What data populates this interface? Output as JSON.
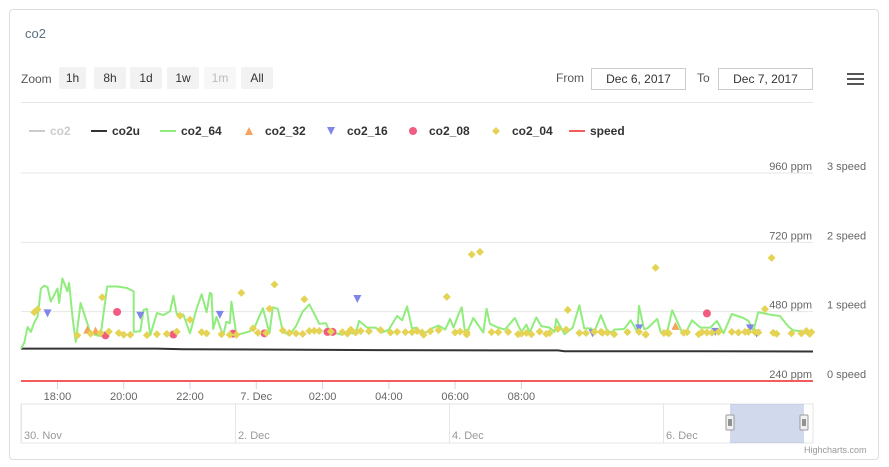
{
  "title": "co2",
  "zoom": {
    "label": "Zoom",
    "buttons": [
      {
        "label": "1h",
        "enabled": true
      },
      {
        "label": "8h",
        "enabled": true
      },
      {
        "label": "1d",
        "enabled": true
      },
      {
        "label": "1w",
        "enabled": true
      },
      {
        "label": "1m",
        "enabled": false
      },
      {
        "label": "All",
        "enabled": true
      }
    ]
  },
  "range": {
    "from_label": "From",
    "from_value": "Dec 6, 2017",
    "to_label": "To",
    "to_value": "Dec 7, 2017"
  },
  "credit": "Highcharts.com",
  "chart_data": {
    "type": "line",
    "x_ticks": [
      "18:00",
      "20:00",
      "22:00",
      "7. Dec",
      "02:00",
      "04:00",
      "06:00",
      "08:00"
    ],
    "y_left_ticks": [
      "240 ppm",
      "480 ppm",
      "720 ppm",
      "960 ppm"
    ],
    "y_left_range": [
      240,
      960
    ],
    "y_right_ticks": [
      "0 speed",
      "1 speed",
      "2 speed",
      "3 speed"
    ],
    "y_right_range": [
      0,
      3
    ],
    "grid": true,
    "legend_position": "top",
    "series": [
      {
        "name": "co2",
        "color": "#cccccc",
        "visible": false,
        "values": []
      },
      {
        "name": "co2u",
        "color": "#333333",
        "marker": "none",
        "values": [
          [
            16.9,
            352
          ],
          [
            21.0,
            352
          ],
          [
            21.8,
            350
          ],
          [
            27.7,
            347
          ],
          [
            31.3,
            346
          ],
          [
            33.1,
            346
          ],
          [
            33.3,
            343
          ],
          [
            37.4,
            343
          ],
          [
            40.8,
            342
          ]
        ]
      },
      {
        "name": "co2_64",
        "color": "#90ed7d",
        "marker": "none",
        "values": [
          [
            16.9,
            352
          ],
          [
            17.0,
            373
          ],
          [
            17.1,
            427
          ],
          [
            17.2,
            410
          ],
          [
            17.3,
            443
          ],
          [
            17.4,
            463
          ],
          [
            17.5,
            560
          ],
          [
            17.6,
            570
          ],
          [
            17.7,
            565
          ],
          [
            17.8,
            515
          ],
          [
            18.0,
            560
          ],
          [
            18.05,
            510
          ],
          [
            18.15,
            595
          ],
          [
            18.3,
            550
          ],
          [
            18.35,
            580
          ],
          [
            18.45,
            465
          ],
          [
            18.55,
            375
          ],
          [
            18.7,
            510
          ],
          [
            19.0,
            405
          ],
          [
            19.2,
            398
          ],
          [
            19.3,
            395
          ],
          [
            19.5,
            567
          ],
          [
            19.8,
            567
          ],
          [
            20.1,
            562
          ],
          [
            20.3,
            550
          ],
          [
            20.3,
            410
          ],
          [
            20.5,
            412
          ],
          [
            20.6,
            486
          ],
          [
            20.7,
            490
          ],
          [
            20.8,
            398
          ],
          [
            21.0,
            475
          ],
          [
            21.2,
            468
          ],
          [
            21.4,
            482
          ],
          [
            21.5,
            535
          ],
          [
            21.6,
            472
          ],
          [
            21.8,
            470
          ],
          [
            22.0,
            405
          ],
          [
            22.2,
            490
          ],
          [
            22.35,
            540
          ],
          [
            22.5,
            478
          ],
          [
            22.6,
            545
          ],
          [
            22.65,
            542
          ],
          [
            22.7,
            420
          ],
          [
            22.8,
            462
          ],
          [
            23.0,
            398
          ],
          [
            23.1,
            445
          ],
          [
            23.2,
            440
          ],
          [
            23.25,
            515
          ],
          [
            23.4,
            400
          ],
          [
            23.6,
            405
          ],
          [
            23.8,
            412
          ],
          [
            23.95,
            426
          ],
          [
            24.2,
            492
          ],
          [
            24.4,
            405
          ],
          [
            24.5,
            495
          ],
          [
            24.65,
            490
          ],
          [
            24.8,
            412
          ],
          [
            25.0,
            398
          ],
          [
            25.2,
            430
          ],
          [
            25.4,
            480
          ],
          [
            25.6,
            505
          ],
          [
            25.8,
            462
          ],
          [
            25.9,
            438
          ],
          [
            26.1,
            440
          ],
          [
            26.25,
            402
          ],
          [
            26.4,
            405
          ],
          [
            26.6,
            400
          ],
          [
            26.75,
            410
          ],
          [
            27.0,
            402
          ],
          [
            27.1,
            448
          ],
          [
            27.35,
            425
          ],
          [
            27.6,
            425
          ],
          [
            27.8,
            408
          ],
          [
            28.0,
            418
          ],
          [
            28.25,
            465
          ],
          [
            28.4,
            450
          ],
          [
            28.55,
            498
          ],
          [
            28.7,
            422
          ],
          [
            28.85,
            425
          ],
          [
            29.0,
            400
          ],
          [
            29.3,
            422
          ],
          [
            29.5,
            432
          ],
          [
            29.7,
            418
          ],
          [
            29.85,
            455
          ],
          [
            29.95,
            425
          ],
          [
            30.1,
            470
          ],
          [
            30.2,
            495
          ],
          [
            30.3,
            407
          ],
          [
            30.35,
            405
          ],
          [
            30.55,
            458
          ],
          [
            30.85,
            408
          ],
          [
            30.95,
            490
          ],
          [
            31.05,
            438
          ],
          [
            31.3,
            425
          ],
          [
            31.5,
            418
          ],
          [
            31.8,
            458
          ],
          [
            32.0,
            410
          ],
          [
            32.15,
            435
          ],
          [
            32.25,
            408
          ],
          [
            32.45,
            460
          ],
          [
            32.6,
            430
          ],
          [
            32.85,
            425
          ],
          [
            33.0,
            410
          ],
          [
            33.05,
            455
          ],
          [
            33.3,
            402
          ],
          [
            33.55,
            425
          ],
          [
            33.75,
            502
          ],
          [
            33.9,
            422
          ],
          [
            34.1,
            422
          ],
          [
            34.2,
            410
          ],
          [
            34.4,
            468
          ],
          [
            34.6,
            410
          ],
          [
            34.75,
            410
          ],
          [
            34.8,
            418
          ],
          [
            35.1,
            420
          ],
          [
            35.3,
            450
          ],
          [
            35.5,
            410
          ],
          [
            35.55,
            500
          ],
          [
            35.7,
            420
          ],
          [
            35.8,
            422
          ],
          [
            36.1,
            455
          ],
          [
            36.2,
            410
          ],
          [
            36.4,
            410
          ],
          [
            36.55,
            485
          ],
          [
            36.85,
            408
          ],
          [
            36.95,
            405
          ],
          [
            37.15,
            450
          ],
          [
            37.4,
            425
          ],
          [
            37.7,
            425
          ],
          [
            37.9,
            448
          ],
          [
            38.1,
            405
          ],
          [
            38.35,
            472
          ],
          [
            38.7,
            458
          ],
          [
            38.85,
            448
          ],
          [
            39.0,
            415
          ],
          [
            39.15,
            478
          ],
          [
            39.5,
            470
          ],
          [
            39.8,
            465
          ],
          [
            40.05,
            430
          ],
          [
            40.2,
            415
          ],
          [
            40.6,
            410
          ],
          [
            40.8,
            410
          ]
        ]
      },
      {
        "name": "co2_32",
        "color": "#f7a35c",
        "marker": "triangle",
        "values": [
          [
            18.9,
            418
          ],
          [
            19.15,
            415
          ],
          [
            36.65,
            431
          ]
        ]
      },
      {
        "name": "co2_16",
        "color": "#8085e9",
        "marker": "triangle-down",
        "values": [
          [
            17.7,
            474
          ],
          [
            20.5,
            466
          ],
          [
            22.9,
            469
          ],
          [
            27.05,
            524
          ],
          [
            34.15,
            405
          ],
          [
            35.55,
            422
          ],
          [
            37.85,
            410
          ],
          [
            38.9,
            422
          ],
          [
            39.1,
            404
          ]
        ]
      },
      {
        "name": "co2_08",
        "color": "#f15c80",
        "marker": "circle",
        "values": [
          [
            19.45,
            398
          ],
          [
            19.8,
            479
          ],
          [
            21.5,
            401
          ],
          [
            23.3,
            404
          ],
          [
            24.25,
            405
          ],
          [
            26.15,
            410
          ],
          [
            26.3,
            410
          ],
          [
            37.6,
            474
          ]
        ]
      },
      {
        "name": "co2_04",
        "color": "#e4d354",
        "marker": "diamond",
        "values": [
          [
            17.3,
            478
          ],
          [
            17.4,
            488
          ],
          [
            18.6,
            398
          ],
          [
            19.0,
            404
          ],
          [
            19.3,
            406
          ],
          [
            19.35,
            530
          ],
          [
            19.55,
            411
          ],
          [
            19.85,
            406
          ],
          [
            20.0,
            400
          ],
          [
            20.2,
            400
          ],
          [
            20.7,
            399
          ],
          [
            21.0,
            402
          ],
          [
            21.3,
            403
          ],
          [
            21.6,
            411
          ],
          [
            21.7,
            466
          ],
          [
            22.0,
            452
          ],
          [
            22.35,
            409
          ],
          [
            22.5,
            405
          ],
          [
            22.95,
            402
          ],
          [
            23.2,
            400
          ],
          [
            23.4,
            400
          ],
          [
            23.55,
            545
          ],
          [
            23.9,
            422
          ],
          [
            24.05,
            407
          ],
          [
            24.3,
            406
          ],
          [
            24.4,
            490
          ],
          [
            24.55,
            574
          ],
          [
            24.8,
            415
          ],
          [
            25.0,
            407
          ],
          [
            25.2,
            405
          ],
          [
            25.4,
            403
          ],
          [
            25.45,
            523
          ],
          [
            25.6,
            413
          ],
          [
            25.75,
            414
          ],
          [
            25.9,
            413
          ],
          [
            26.25,
            411
          ],
          [
            26.6,
            409
          ],
          [
            26.75,
            404
          ],
          [
            26.85,
            418
          ],
          [
            27.0,
            408
          ],
          [
            27.15,
            413
          ],
          [
            27.4,
            412
          ],
          [
            27.75,
            416
          ],
          [
            28.05,
            408
          ],
          [
            28.25,
            410
          ],
          [
            28.5,
            409
          ],
          [
            28.7,
            409
          ],
          [
            28.85,
            413
          ],
          [
            29.0,
            408
          ],
          [
            29.05,
            400
          ],
          [
            29.25,
            412
          ],
          [
            29.5,
            416
          ],
          [
            29.75,
            531
          ],
          [
            30.0,
            408
          ],
          [
            30.15,
            411
          ],
          [
            30.35,
            408
          ],
          [
            30.35,
            401
          ],
          [
            30.5,
            678
          ],
          [
            30.75,
            687
          ],
          [
            31.1,
            409
          ],
          [
            31.3,
            409
          ],
          [
            31.6,
            410
          ],
          [
            31.9,
            402
          ],
          [
            32.0,
            404
          ],
          [
            32.15,
            406
          ],
          [
            32.3,
            402
          ],
          [
            32.55,
            411
          ],
          [
            32.75,
            403
          ],
          [
            32.85,
            406
          ],
          [
            33.1,
            420
          ],
          [
            33.35,
            418
          ],
          [
            33.4,
            486
          ],
          [
            33.75,
            406
          ],
          [
            33.95,
            406
          ],
          [
            34.2,
            410
          ],
          [
            34.4,
            410
          ],
          [
            34.45,
            407
          ],
          [
            34.6,
            408
          ],
          [
            34.8,
            402
          ],
          [
            35.2,
            409
          ],
          [
            35.55,
            410
          ],
          [
            35.75,
            402
          ],
          [
            35.75,
            400
          ],
          [
            36.05,
            632
          ],
          [
            36.3,
            406
          ],
          [
            36.4,
            408
          ],
          [
            36.45,
            405
          ],
          [
            36.9,
            407
          ],
          [
            37.0,
            409
          ],
          [
            37.35,
            402
          ],
          [
            37.45,
            409
          ],
          [
            37.6,
            408
          ],
          [
            37.75,
            407
          ],
          [
            37.95,
            410
          ],
          [
            38.35,
            410
          ],
          [
            38.55,
            408
          ],
          [
            38.75,
            410
          ],
          [
            38.85,
            410
          ],
          [
            39.05,
            409
          ],
          [
            39.15,
            408
          ],
          [
            39.35,
            489
          ],
          [
            39.55,
            666
          ],
          [
            39.6,
            407
          ],
          [
            39.7,
            403
          ],
          [
            40.15,
            405
          ],
          [
            40.45,
            405
          ],
          [
            40.6,
            413
          ],
          [
            40.7,
            403
          ],
          [
            40.75,
            409
          ]
        ]
      },
      {
        "name": "speed",
        "color": "#f45b5b",
        "marker": "none",
        "values": [
          [
            16.9,
            0
          ],
          [
            40.8,
            0
          ]
        ]
      }
    ],
    "navigator": {
      "labels": [
        "30. Nov",
        "2. Dec",
        "4. Dec",
        "6. Dec"
      ]
    }
  }
}
